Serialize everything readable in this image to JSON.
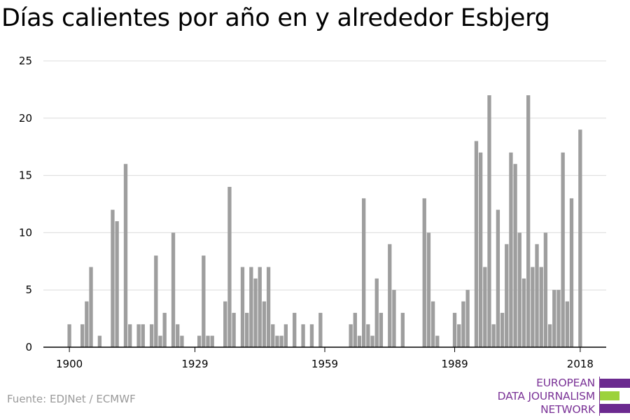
{
  "title": "Días calientes por año en y alrededor Esbjerg",
  "source": "Fuente: EDJNet / ECMWF",
  "logo": {
    "lines": [
      "EUROPEAN",
      "DATA JOURNALISM",
      "NETWORK"
    ],
    "colors": {
      "primary": "#6b2a8f",
      "accent": "#9cd23c"
    }
  },
  "colors": {
    "bar": "#9e9e9e",
    "grid": "#dcdcdc",
    "axis": "#000000",
    "text": "#000000"
  },
  "chart_data": {
    "type": "bar",
    "title": "Días calientes por año en y alrededor Esbjerg",
    "xlabel": "",
    "ylabel": "",
    "ylim": [
      0,
      25
    ],
    "yticks": [
      0,
      5,
      10,
      15,
      20,
      25
    ],
    "xticks": [
      1900,
      1929,
      1959,
      1989,
      2018
    ],
    "xrange": [
      1894,
      2024
    ],
    "grid": true,
    "x": [
      1900,
      1901,
      1902,
      1903,
      1904,
      1905,
      1906,
      1907,
      1908,
      1909,
      1910,
      1911,
      1912,
      1913,
      1914,
      1915,
      1916,
      1917,
      1918,
      1919,
      1920,
      1921,
      1922,
      1923,
      1924,
      1925,
      1926,
      1927,
      1928,
      1929,
      1930,
      1931,
      1932,
      1933,
      1934,
      1935,
      1936,
      1937,
      1938,
      1939,
      1940,
      1941,
      1942,
      1943,
      1944,
      1945,
      1946,
      1947,
      1948,
      1949,
      1950,
      1951,
      1952,
      1953,
      1954,
      1955,
      1956,
      1957,
      1958,
      1959,
      1960,
      1961,
      1962,
      1963,
      1964,
      1965,
      1966,
      1967,
      1968,
      1969,
      1970,
      1971,
      1972,
      1973,
      1974,
      1975,
      1976,
      1977,
      1978,
      1979,
      1980,
      1981,
      1982,
      1983,
      1984,
      1985,
      1986,
      1987,
      1988,
      1989,
      1990,
      1991,
      1992,
      1993,
      1994,
      1995,
      1996,
      1997,
      1998,
      1999,
      2000,
      2001,
      2002,
      2003,
      2004,
      2005,
      2006,
      2007,
      2008,
      2009,
      2010,
      2011,
      2012,
      2013,
      2014,
      2015,
      2016,
      2017,
      2018
    ],
    "values": [
      2,
      0,
      0,
      2,
      4,
      7,
      0,
      1,
      0,
      0,
      12,
      11,
      0,
      16,
      2,
      0,
      2,
      2,
      0,
      2,
      8,
      1,
      3,
      0,
      10,
      2,
      1,
      0,
      0,
      0,
      1,
      8,
      1,
      1,
      0,
      0,
      4,
      14,
      3,
      0,
      7,
      3,
      7,
      6,
      7,
      4,
      7,
      2,
      1,
      1,
      2,
      0,
      3,
      0,
      2,
      0,
      2,
      0,
      3,
      0,
      0,
      0,
      0,
      0,
      0,
      2,
      3,
      1,
      13,
      2,
      1,
      6,
      3,
      0,
      9,
      5,
      0,
      3,
      0,
      0,
      0,
      0,
      13,
      10,
      4,
      1,
      0,
      0,
      0,
      3,
      2,
      4,
      5,
      0,
      18,
      17,
      7,
      22,
      2,
      12,
      3,
      9,
      17,
      16,
      10,
      6,
      22,
      7,
      9,
      7,
      10,
      2,
      5,
      5,
      17,
      4,
      13,
      0,
      19
    ]
  }
}
